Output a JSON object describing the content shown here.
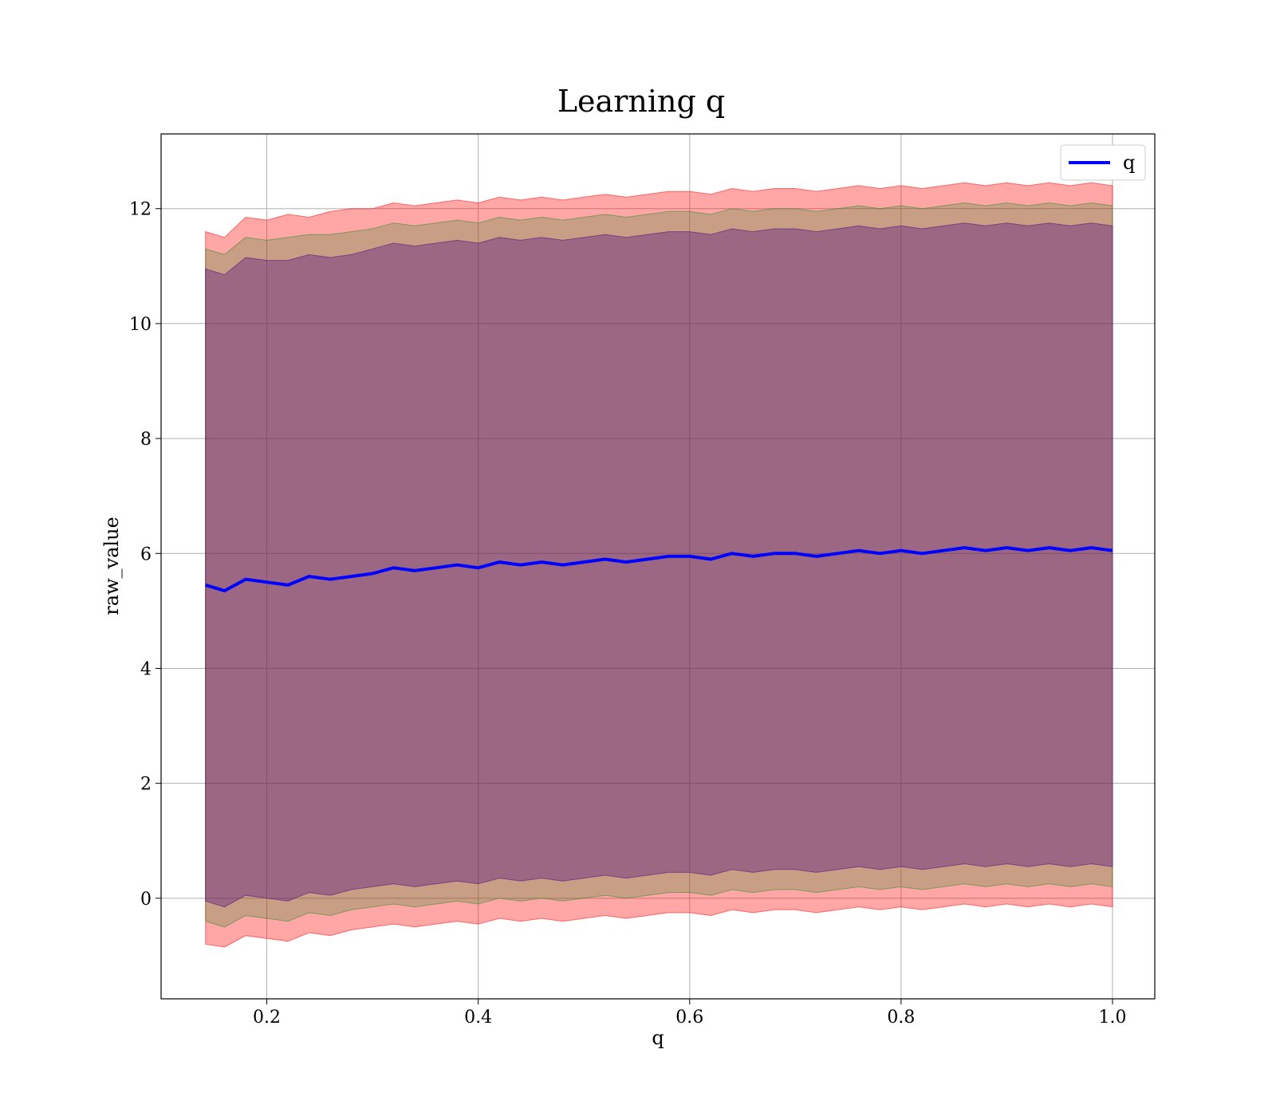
{
  "chart_data": {
    "type": "line",
    "title": "Learning q",
    "xlabel": "q",
    "ylabel": "raw_value",
    "xlim": [
      0.1,
      1.04
    ],
    "ylim": [
      -1.75,
      13.3
    ],
    "xticks": [
      0.2,
      0.4,
      0.6,
      0.8,
      1.0
    ],
    "xtick_labels": [
      "0.2",
      "0.4",
      "0.6",
      "0.8",
      "1.0"
    ],
    "yticks": [
      0,
      2,
      4,
      6,
      8,
      10,
      12
    ],
    "ytick_labels": [
      "0",
      "2",
      "4",
      "6",
      "8",
      "10",
      "12"
    ],
    "grid": true,
    "legend_position": "top-right",
    "series": [
      {
        "name": "q",
        "color": "#0000ff",
        "x": [
          0.142,
          0.16,
          0.18,
          0.2,
          0.22,
          0.24,
          0.26,
          0.28,
          0.3,
          0.32,
          0.34,
          0.36,
          0.38,
          0.4,
          0.42,
          0.44,
          0.46,
          0.48,
          0.5,
          0.52,
          0.54,
          0.56,
          0.58,
          0.6,
          0.62,
          0.64,
          0.66,
          0.68,
          0.7,
          0.72,
          0.74,
          0.76,
          0.78,
          0.8,
          0.82,
          0.84,
          0.86,
          0.88,
          0.9,
          0.92,
          0.94,
          0.96,
          0.98,
          1.0
        ],
        "y": [
          5.45,
          5.35,
          5.55,
          5.5,
          5.45,
          5.6,
          5.55,
          5.6,
          5.65,
          5.75,
          5.7,
          5.75,
          5.8,
          5.75,
          5.85,
          5.8,
          5.85,
          5.8,
          5.85,
          5.9,
          5.85,
          5.9,
          5.95,
          5.95,
          5.9,
          6.0,
          5.95,
          6.0,
          6.0,
          5.95,
          6.0,
          6.05,
          6.0,
          6.05,
          6.0,
          6.05,
          6.1,
          6.05,
          6.1,
          6.05,
          6.1,
          6.05,
          6.1,
          6.05
        ]
      }
    ],
    "bands": [
      {
        "color": "#ff0000",
        "opacity": 0.35,
        "x": [
          0.142,
          0.16,
          0.18,
          0.2,
          0.22,
          0.24,
          0.26,
          0.28,
          0.3,
          0.32,
          0.34,
          0.36,
          0.38,
          0.4,
          0.42,
          0.44,
          0.46,
          0.48,
          0.5,
          0.52,
          0.54,
          0.56,
          0.58,
          0.6,
          0.62,
          0.64,
          0.66,
          0.68,
          0.7,
          0.72,
          0.74,
          0.76,
          0.78,
          0.8,
          0.82,
          0.84,
          0.86,
          0.88,
          0.9,
          0.92,
          0.94,
          0.96,
          0.98,
          1.0
        ],
        "upper": [
          11.6,
          11.5,
          11.85,
          11.8,
          11.9,
          11.85,
          11.95,
          12.0,
          12.0,
          12.1,
          12.05,
          12.1,
          12.15,
          12.1,
          12.2,
          12.15,
          12.2,
          12.15,
          12.2,
          12.25,
          12.2,
          12.25,
          12.3,
          12.3,
          12.25,
          12.35,
          12.3,
          12.35,
          12.35,
          12.3,
          12.35,
          12.4,
          12.35,
          12.4,
          12.35,
          12.4,
          12.45,
          12.4,
          12.45,
          12.4,
          12.45,
          12.4,
          12.45,
          12.4
        ],
        "lower": [
          -0.8,
          -0.85,
          -0.65,
          -0.7,
          -0.75,
          -0.6,
          -0.65,
          -0.55,
          -0.5,
          -0.45,
          -0.5,
          -0.45,
          -0.4,
          -0.45,
          -0.35,
          -0.4,
          -0.35,
          -0.4,
          -0.35,
          -0.3,
          -0.35,
          -0.3,
          -0.25,
          -0.25,
          -0.3,
          -0.2,
          -0.25,
          -0.2,
          -0.2,
          -0.25,
          -0.2,
          -0.15,
          -0.2,
          -0.15,
          -0.2,
          -0.15,
          -0.1,
          -0.15,
          -0.1,
          -0.15,
          -0.1,
          -0.15,
          -0.1,
          -0.15
        ]
      },
      {
        "color": "#228b22",
        "opacity": 0.25,
        "x": [
          0.142,
          0.16,
          0.18,
          0.2,
          0.22,
          0.24,
          0.26,
          0.28,
          0.3,
          0.32,
          0.34,
          0.36,
          0.38,
          0.4,
          0.42,
          0.44,
          0.46,
          0.48,
          0.5,
          0.52,
          0.54,
          0.56,
          0.58,
          0.6,
          0.62,
          0.64,
          0.66,
          0.68,
          0.7,
          0.72,
          0.74,
          0.76,
          0.78,
          0.8,
          0.82,
          0.84,
          0.86,
          0.88,
          0.9,
          0.92,
          0.94,
          0.96,
          0.98,
          1.0
        ],
        "upper": [
          11.3,
          11.2,
          11.5,
          11.45,
          11.5,
          11.55,
          11.55,
          11.6,
          11.65,
          11.75,
          11.7,
          11.75,
          11.8,
          11.75,
          11.85,
          11.8,
          11.85,
          11.8,
          11.85,
          11.9,
          11.85,
          11.9,
          11.95,
          11.95,
          11.9,
          12.0,
          11.95,
          12.0,
          12.0,
          11.95,
          12.0,
          12.05,
          12.0,
          12.05,
          12.0,
          12.05,
          12.1,
          12.05,
          12.1,
          12.05,
          12.1,
          12.05,
          12.1,
          12.05
        ],
        "lower": [
          -0.4,
          -0.5,
          -0.3,
          -0.35,
          -0.4,
          -0.25,
          -0.3,
          -0.2,
          -0.15,
          -0.1,
          -0.15,
          -0.1,
          -0.05,
          -0.1,
          0.0,
          -0.05,
          0.0,
          -0.05,
          0.0,
          0.05,
          0.0,
          0.05,
          0.1,
          0.1,
          0.05,
          0.15,
          0.1,
          0.15,
          0.15,
          0.1,
          0.15,
          0.2,
          0.15,
          0.2,
          0.15,
          0.2,
          0.25,
          0.2,
          0.25,
          0.2,
          0.25,
          0.2,
          0.25,
          0.2
        ]
      },
      {
        "color": "#4b0082",
        "opacity": 0.35,
        "x": [
          0.142,
          0.16,
          0.18,
          0.2,
          0.22,
          0.24,
          0.26,
          0.28,
          0.3,
          0.32,
          0.34,
          0.36,
          0.38,
          0.4,
          0.42,
          0.44,
          0.46,
          0.48,
          0.5,
          0.52,
          0.54,
          0.56,
          0.58,
          0.6,
          0.62,
          0.64,
          0.66,
          0.68,
          0.7,
          0.72,
          0.74,
          0.76,
          0.78,
          0.8,
          0.82,
          0.84,
          0.86,
          0.88,
          0.9,
          0.92,
          0.94,
          0.96,
          0.98,
          1.0
        ],
        "upper": [
          10.95,
          10.85,
          11.15,
          11.1,
          11.1,
          11.2,
          11.15,
          11.2,
          11.3,
          11.4,
          11.35,
          11.4,
          11.45,
          11.4,
          11.5,
          11.45,
          11.5,
          11.45,
          11.5,
          11.55,
          11.5,
          11.55,
          11.6,
          11.6,
          11.55,
          11.65,
          11.6,
          11.65,
          11.65,
          11.6,
          11.65,
          11.7,
          11.65,
          11.7,
          11.65,
          11.7,
          11.75,
          11.7,
          11.75,
          11.7,
          11.75,
          11.7,
          11.75,
          11.7
        ],
        "lower": [
          -0.05,
          -0.15,
          0.05,
          0.0,
          -0.05,
          0.1,
          0.05,
          0.15,
          0.2,
          0.25,
          0.2,
          0.25,
          0.3,
          0.25,
          0.35,
          0.3,
          0.35,
          0.3,
          0.35,
          0.4,
          0.35,
          0.4,
          0.45,
          0.45,
          0.4,
          0.5,
          0.45,
          0.5,
          0.5,
          0.45,
          0.5,
          0.55,
          0.5,
          0.55,
          0.5,
          0.55,
          0.6,
          0.55,
          0.6,
          0.55,
          0.6,
          0.55,
          0.6,
          0.55
        ]
      }
    ]
  }
}
